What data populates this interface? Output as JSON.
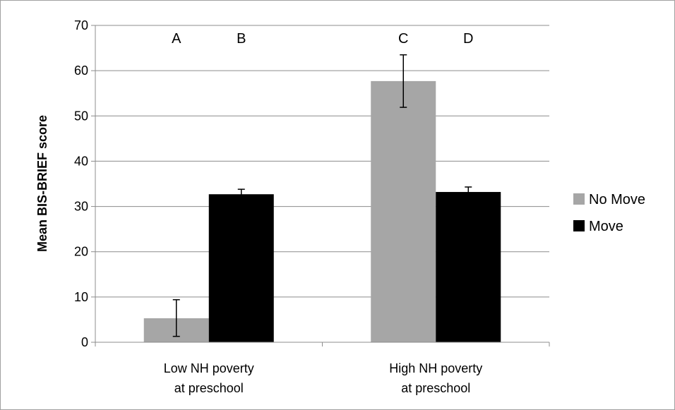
{
  "chart_data": {
    "type": "bar",
    "title": "",
    "xlabel": "",
    "ylabel": "Mean BIS-BRIEF score",
    "ylim": [
      0,
      70
    ],
    "yticks": [
      0,
      10,
      20,
      30,
      40,
      50,
      60,
      70
    ],
    "grid": true,
    "legend_position": "right",
    "categories": [
      [
        "Low NH poverty",
        "at preschool"
      ],
      [
        "High NH poverty",
        "at preschool"
      ]
    ],
    "series": [
      {
        "name": "No Move",
        "color": "#a6a6a6",
        "values": [
          5.3,
          57.7
        ],
        "error_low": [
          1.3,
          51.9
        ],
        "error_high": [
          9.4,
          63.5
        ],
        "labels": [
          "A",
          "C"
        ]
      },
      {
        "name": "Move",
        "color": "#000000",
        "values": [
          32.7,
          33.2
        ],
        "error_low": [
          31.7,
          32.2
        ],
        "error_high": [
          33.8,
          34.3
        ],
        "labels": [
          "B",
          "D"
        ]
      }
    ]
  }
}
